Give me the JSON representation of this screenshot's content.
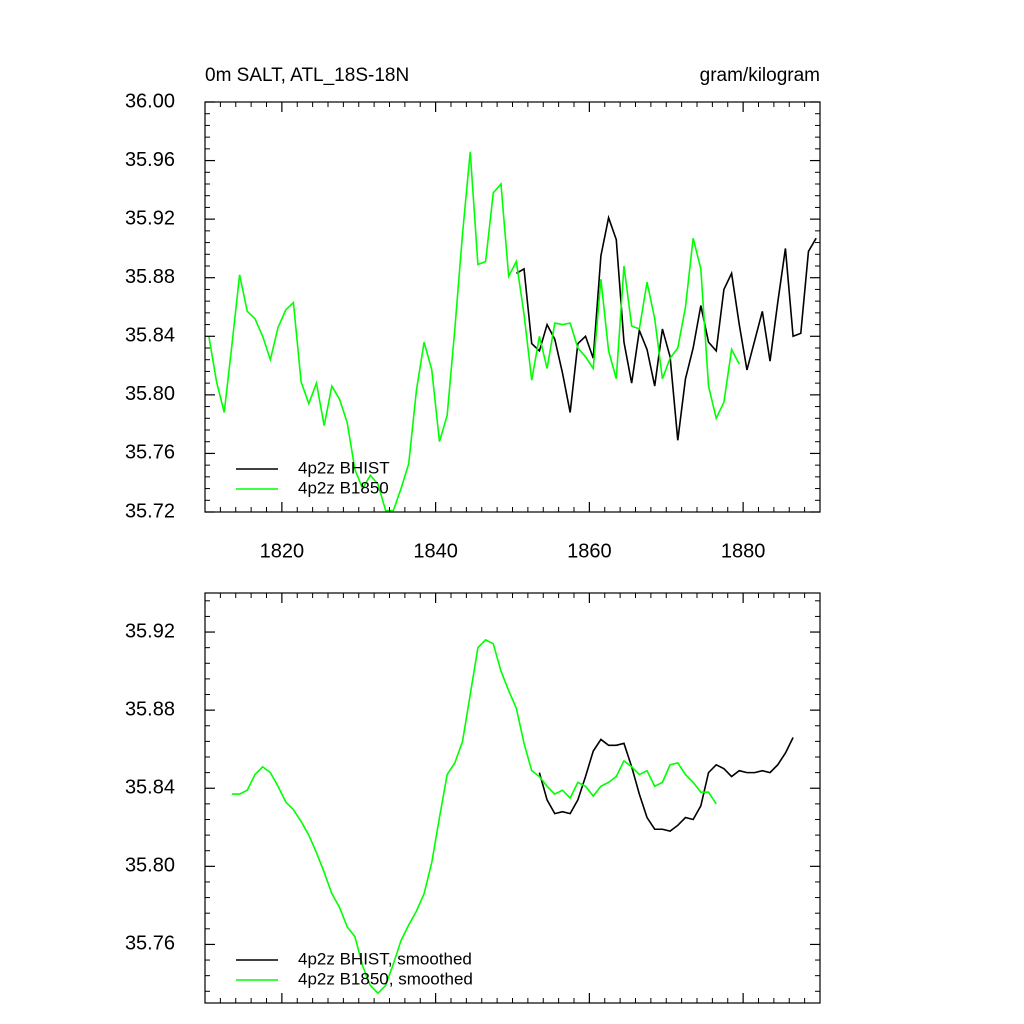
{
  "chart_data": [
    {
      "type": "line",
      "title": "0m SALT, ATL_18S-18N",
      "subtitle": "gram/kilogram",
      "x": [
        1810.5,
        1811.5,
        1812.5,
        1813.5,
        1814.5,
        1815.5,
        1816.5,
        1817.5,
        1818.5,
        1819.5,
        1820.5,
        1821.5,
        1822.5,
        1823.5,
        1824.5,
        1825.5,
        1826.5,
        1827.5,
        1828.5,
        1829.5,
        1830.5,
        1831.5,
        1832.5,
        1833.5,
        1834.5,
        1835.5,
        1836.5,
        1837.5,
        1838.5,
        1839.5,
        1840.5,
        1841.5,
        1842.5,
        1843.5,
        1844.5,
        1845.5,
        1846.5,
        1847.5,
        1848.5,
        1849.5,
        1850.5,
        1851.5,
        1852.5,
        1853.5,
        1854.5,
        1855.5,
        1856.5,
        1857.5,
        1858.5,
        1859.5,
        1860.5,
        1861.5,
        1862.5,
        1863.5,
        1864.5,
        1865.5,
        1866.5,
        1867.5,
        1868.5,
        1869.5,
        1870.5,
        1871.5,
        1872.5,
        1873.5,
        1874.5,
        1875.5,
        1876.5,
        1877.5,
        1878.5,
        1879.5,
        1880.5,
        1881.5,
        1882.5,
        1883.5,
        1884.5,
        1885.5,
        1886.5,
        1887.5,
        1888.5,
        1889.5
      ],
      "series": [
        {
          "name": "4p2z BHIST",
          "color": "#000000",
          "values": [
            null,
            null,
            null,
            null,
            null,
            null,
            null,
            null,
            null,
            null,
            null,
            null,
            null,
            null,
            null,
            null,
            null,
            null,
            null,
            null,
            null,
            null,
            null,
            null,
            null,
            null,
            null,
            null,
            null,
            null,
            null,
            null,
            null,
            null,
            null,
            null,
            null,
            null,
            null,
            null,
            35.883,
            35.886,
            35.835,
            35.83,
            35.848,
            35.838,
            35.815,
            35.788,
            35.835,
            35.84,
            35.825,
            35.895,
            35.921,
            35.906,
            35.836,
            35.808,
            35.844,
            35.831,
            35.806,
            35.845,
            35.826,
            35.769,
            35.811,
            35.832,
            35.861,
            35.836,
            35.83,
            35.872,
            35.883,
            35.848,
            35.817,
            35.837,
            35.857,
            35.823,
            35.863,
            35.9,
            35.84,
            35.842,
            35.898,
            35.907
          ]
        },
        {
          "name": "4p2z B1850",
          "color": "#00ff00",
          "values": [
            35.84,
            35.809,
            35.788,
            35.834,
            35.882,
            35.857,
            35.852,
            35.84,
            35.824,
            35.846,
            35.858,
            35.863,
            35.809,
            35.794,
            35.808,
            35.779,
            35.806,
            35.797,
            35.781,
            35.749,
            35.736,
            35.745,
            35.739,
            35.721,
            35.721,
            35.736,
            35.753,
            35.803,
            35.836,
            35.817,
            35.768,
            35.786,
            35.845,
            35.91,
            35.966,
            35.889,
            35.891,
            35.938,
            35.944,
            35.881,
            35.891,
            35.855,
            35.81,
            35.84,
            35.818,
            35.849,
            35.848,
            35.849,
            35.832,
            35.826,
            35.818,
            35.879,
            35.83,
            35.811,
            35.888,
            35.847,
            35.845,
            35.877,
            35.852,
            35.811,
            35.825,
            35.832,
            35.86,
            35.907,
            35.886,
            35.806,
            35.784,
            35.795,
            35.831,
            35.821,
            null,
            null,
            null,
            null,
            null,
            null,
            null,
            null,
            null,
            null
          ]
        }
      ],
      "xlim": [
        1810,
        1890
      ],
      "xticks": [
        1820,
        1840,
        1860,
        1880
      ],
      "xtick_labels": true,
      "ylim": [
        35.72,
        36.0
      ],
      "yticks": [
        35.72,
        35.76,
        {
          "value": 35.8,
          "label": "35.80"
        },
        35.84,
        35.88,
        35.92,
        35.96,
        {
          "value": 36.0,
          "label": "36.00"
        }
      ],
      "legend": "lower left",
      "grid": false
    },
    {
      "type": "line",
      "x": [
        1813.5,
        1814.5,
        1815.5,
        1816.5,
        1817.5,
        1818.5,
        1819.5,
        1820.5,
        1821.5,
        1822.5,
        1823.5,
        1824.5,
        1825.5,
        1826.5,
        1827.5,
        1828.5,
        1829.5,
        1830.5,
        1831.5,
        1832.5,
        1833.5,
        1834.5,
        1835.5,
        1836.5,
        1837.5,
        1838.5,
        1839.5,
        1840.5,
        1841.5,
        1842.5,
        1843.5,
        1844.5,
        1845.5,
        1846.5,
        1847.5,
        1848.5,
        1849.5,
        1850.5,
        1851.5,
        1852.5,
        1853.5,
        1854.5,
        1855.5,
        1856.5,
        1857.5,
        1858.5,
        1859.5,
        1860.5,
        1861.5,
        1862.5,
        1863.5,
        1864.5,
        1865.5,
        1866.5,
        1867.5,
        1868.5,
        1869.5,
        1870.5,
        1871.5,
        1872.5,
        1873.5,
        1874.5,
        1875.5,
        1876.5,
        1877.5,
        1878.5,
        1879.5,
        1880.5,
        1881.5,
        1882.5,
        1883.5,
        1884.5,
        1885.5,
        1886.5
      ],
      "series": [
        {
          "name": "4p2z BHIST, smoothed",
          "color": "#000000",
          "values": [
            null,
            null,
            null,
            null,
            null,
            null,
            null,
            null,
            null,
            null,
            null,
            null,
            null,
            null,
            null,
            null,
            null,
            null,
            null,
            null,
            null,
            null,
            null,
            null,
            null,
            null,
            null,
            null,
            null,
            null,
            null,
            null,
            null,
            null,
            null,
            null,
            null,
            null,
            null,
            null,
            35.848,
            35.834,
            35.827,
            35.828,
            35.827,
            35.834,
            35.846,
            35.859,
            35.865,
            35.862,
            35.862,
            35.863,
            35.851,
            35.837,
            35.825,
            35.819,
            35.819,
            35.818,
            35.821,
            35.825,
            35.824,
            35.831,
            35.848,
            35.852,
            35.85,
            35.846,
            35.849,
            35.848,
            35.848,
            35.849,
            35.848,
            35.852,
            35.858,
            35.866
          ]
        },
        {
          "name": "4p2z B1850, smoothed",
          "color": "#00ff00",
          "values": [
            35.837,
            35.837,
            35.839,
            35.847,
            35.851,
            35.848,
            35.841,
            35.833,
            35.829,
            35.823,
            35.816,
            35.807,
            35.797,
            35.786,
            35.779,
            35.769,
            35.764,
            35.749,
            35.739,
            35.735,
            35.739,
            35.75,
            35.762,
            35.77,
            35.777,
            35.786,
            35.802,
            35.825,
            35.847,
            35.853,
            35.864,
            35.888,
            35.912,
            35.916,
            35.914,
            35.9,
            35.89,
            35.881,
            35.863,
            35.849,
            35.846,
            35.841,
            35.837,
            35.839,
            35.835,
            35.843,
            35.841,
            35.836,
            35.841,
            35.843,
            35.846,
            35.854,
            35.851,
            35.847,
            35.849,
            35.841,
            35.843,
            35.852,
            35.853,
            35.847,
            35.843,
            35.838,
            35.838,
            35.832,
            null,
            null,
            null,
            null,
            null,
            null,
            null,
            null,
            null,
            null
          ]
        }
      ],
      "xlim": [
        1810,
        1890
      ],
      "xticks": [
        1820,
        1840,
        1860,
        1880
      ],
      "xtick_labels": false,
      "ylim": [
        35.73,
        35.94
      ],
      "yticks": [
        35.76,
        {
          "value": 35.8,
          "label": "35.80"
        },
        35.84,
        35.88,
        35.92
      ],
      "legend": "lower left",
      "grid": false
    }
  ]
}
